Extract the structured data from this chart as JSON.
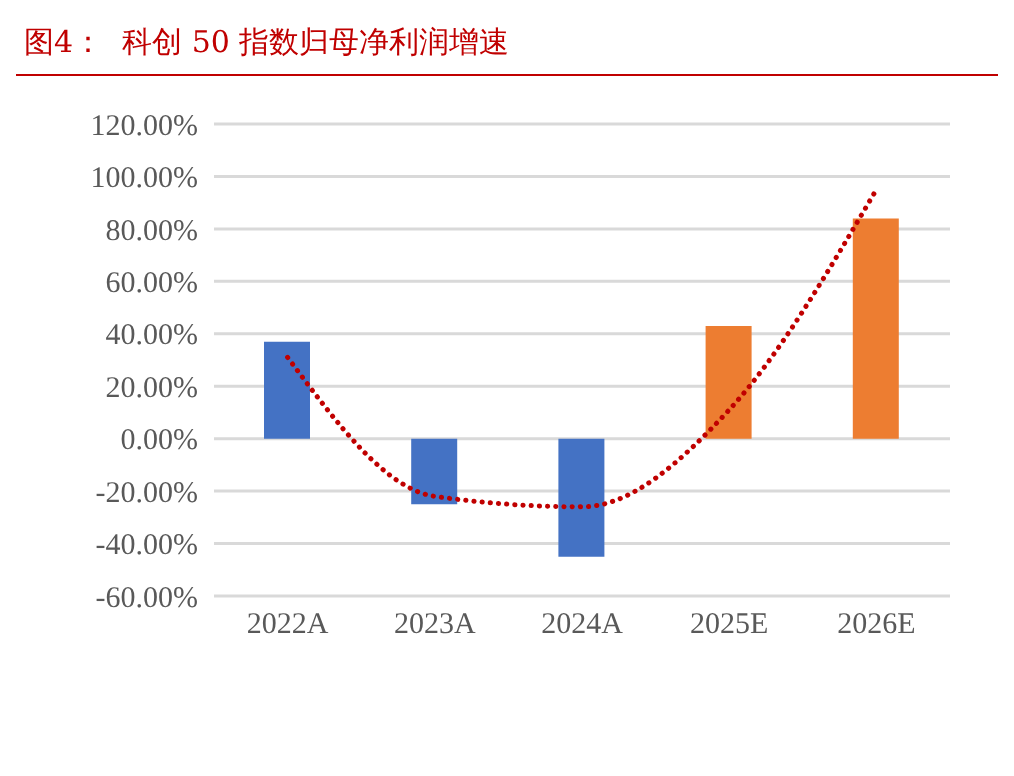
{
  "chart_data": {
    "type": "bar",
    "title": "图4：  科创 50 指数归母净利润增速",
    "categories": [
      "2022A",
      "2023A",
      "2024A",
      "2025E",
      "2026E"
    ],
    "series": [
      {
        "values": [
          37,
          -25,
          -45,
          43,
          84
        ],
        "colors": [
          "#4472c4",
          "#4472c4",
          "#4472c4",
          "#ed7d31",
          "#ed7d31"
        ]
      },
      {
        "type": "line",
        "x": [
          "2022A",
          "2023A",
          "2024A",
          "2025E",
          "2026E"
        ],
        "values": [
          31,
          -22,
          -26,
          11,
          95
        ],
        "color": "#c00000",
        "line_style": "dotted",
        "marker": "none"
      }
    ],
    "ylim": [
      -60,
      120
    ],
    "yticks": [
      {
        "value": -60,
        "label": "-60.00%"
      },
      {
        "value": -40,
        "label": "-40.00%"
      },
      {
        "value": -20,
        "label": "-20.00%"
      },
      {
        "value": 0,
        "label": "0.00%"
      },
      {
        "value": 20,
        "label": "20.00%"
      },
      {
        "value": 40,
        "label": "40.00%"
      },
      {
        "value": 60,
        "label": "60.00%"
      },
      {
        "value": 80,
        "label": "80.00%"
      },
      {
        "value": 100,
        "label": "100.00%"
      },
      {
        "value": 120,
        "label": "120.00%"
      }
    ],
    "grid": "y"
  }
}
